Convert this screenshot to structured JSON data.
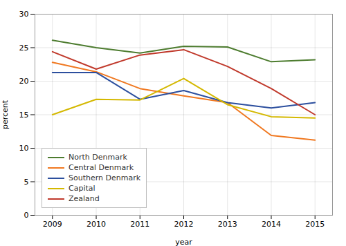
{
  "chart_data": {
    "type": "line",
    "x": [
      2009,
      2010,
      2011,
      2012,
      2013,
      2014,
      2015
    ],
    "series": [
      {
        "name": "North Denmark",
        "color": "#4d7c2f",
        "values": [
          26.1,
          25.0,
          24.2,
          25.2,
          25.1,
          22.9,
          23.2
        ]
      },
      {
        "name": "Central Denmark",
        "color": "#f07820",
        "values": [
          22.8,
          21.4,
          18.9,
          17.8,
          16.8,
          11.9,
          11.2
        ]
      },
      {
        "name": "Southern Denmark",
        "color": "#2c4f9e",
        "values": [
          21.3,
          21.3,
          17.3,
          18.6,
          16.8,
          16.0,
          16.8
        ]
      },
      {
        "name": "Capital",
        "color": "#d4b800",
        "values": [
          15.0,
          17.3,
          17.2,
          20.4,
          16.5,
          14.7,
          14.5
        ]
      },
      {
        "name": "Zealand",
        "color": "#c0392b",
        "values": [
          24.4,
          21.8,
          23.9,
          24.7,
          22.2,
          18.9,
          15.0
        ]
      }
    ],
    "xlabel": "year",
    "ylabel": "percent",
    "xlim": [
      2008.6,
      2015.4
    ],
    "xticks": [
      2009,
      2010,
      2011,
      2012,
      2013,
      2014,
      2015
    ],
    "ylim": [
      0,
      30
    ],
    "yticks": [
      0,
      5,
      10,
      15,
      20,
      25,
      30
    ],
    "grid": true,
    "legend": "lower left"
  }
}
